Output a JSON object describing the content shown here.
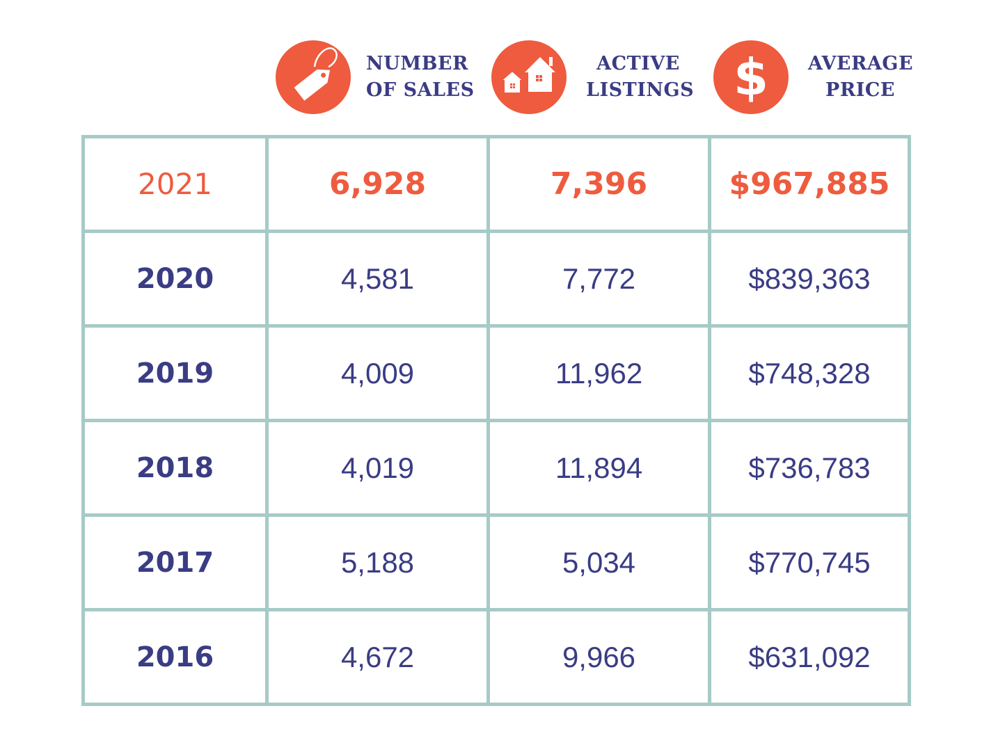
{
  "headers": {
    "sales": {
      "line1": "NUMBER",
      "line2": "OF SALES",
      "icon": "price-tag-icon"
    },
    "listings": {
      "line1": "ACTIVE",
      "line2": "LISTINGS",
      "icon": "houses-icon"
    },
    "price": {
      "line1": "AVERAGE",
      "line2": "PRICE",
      "icon": "dollar-sign-icon"
    }
  },
  "colors": {
    "accent": "#ee5b3e",
    "text": "#3a3c84",
    "border": "#a6cbc6"
  },
  "chart_data": {
    "type": "table",
    "columns": [
      "",
      "NUMBER OF SALES",
      "ACTIVE LISTINGS",
      "AVERAGE PRICE"
    ],
    "highlighted_row": "2021",
    "rows": [
      {
        "year": "2021",
        "sales": "6,928",
        "listings": "7,396",
        "price": "$967,885"
      },
      {
        "year": "2020",
        "sales": "4,581",
        "listings": "7,772",
        "price": "$839,363"
      },
      {
        "year": "2019",
        "sales": "4,009",
        "listings": "11,962",
        "price": "$748,328"
      },
      {
        "year": "2018",
        "sales": "4,019",
        "listings": "11,894",
        "price": "$736,783"
      },
      {
        "year": "2017",
        "sales": "5,188",
        "listings": "5,034",
        "price": "$770,745"
      },
      {
        "year": "2016",
        "sales": "4,672",
        "listings": "9,966",
        "price": "$631,092"
      }
    ]
  }
}
